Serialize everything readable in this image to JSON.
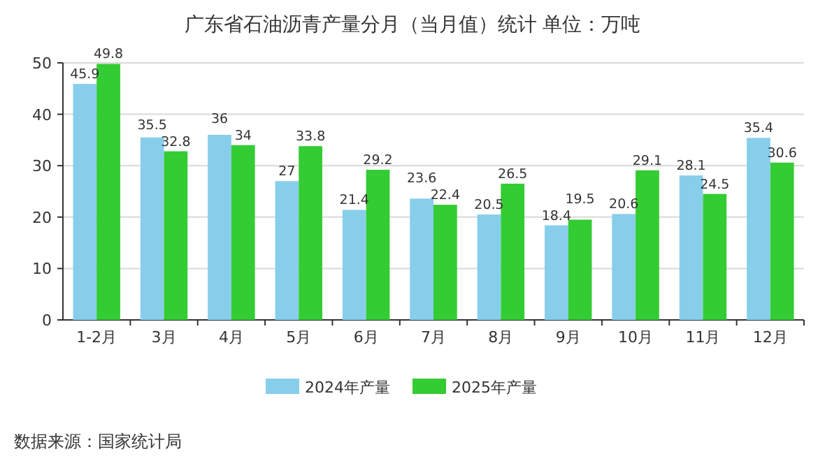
{
  "chart_data": {
    "type": "bar",
    "title": "广东省石油沥青产量分月（当月值）统计 单位：万吨",
    "categories": [
      "1-2月",
      "3月",
      "4月",
      "5月",
      "6月",
      "7月",
      "8月",
      "9月",
      "10月",
      "11月",
      "12月"
    ],
    "series": [
      {
        "name": "2024年产量",
        "color": "#87ceeb",
        "values": [
          45.9,
          35.5,
          36,
          27,
          21.4,
          23.6,
          20.5,
          18.4,
          20.6,
          28.1,
          35.4
        ]
      },
      {
        "name": "2025年产量",
        "color": "#33cc33",
        "values": [
          49.8,
          32.8,
          34,
          33.8,
          29.2,
          22.4,
          26.5,
          19.5,
          29.1,
          24.5,
          30.6
        ]
      }
    ],
    "ylim": [
      0,
      50
    ],
    "yticks": [
      0,
      10,
      20,
      30,
      40,
      50
    ],
    "grid": "y",
    "legend": "bottom",
    "data_labels": true,
    "annotations": [
      "数据来源：国家统计局"
    ]
  }
}
